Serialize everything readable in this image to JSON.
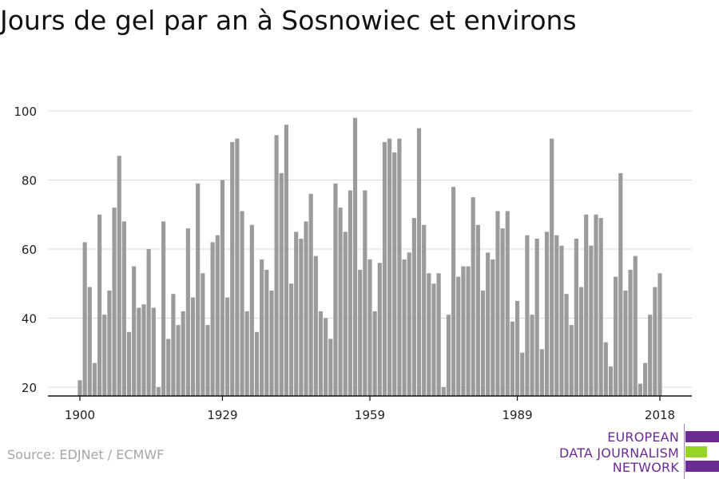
{
  "title": "Jours de gel par an à Sosnowiec et environs",
  "source": "Source: EDJNet / ECMWF",
  "logo": {
    "lines": [
      "EUROPEAN",
      "DATA JOURNALISM",
      "NETWORK"
    ],
    "text_color": "#6a2c91",
    "bar_colors": [
      "#6a2c91",
      "#97d321",
      "#6a2c91"
    ]
  },
  "colors": {
    "bar": "#9b9b9b",
    "grid": "#d9d9d9",
    "axis": "#111111",
    "tick_text": "#222222"
  },
  "chart_data": {
    "type": "bar",
    "title": "Jours de gel par an à Sosnowiec et environs",
    "xlabel": "",
    "ylabel": "",
    "ylim": [
      20,
      100
    ],
    "yticks": [
      20,
      40,
      60,
      80,
      100
    ],
    "xticks": [
      1900,
      1929,
      1959,
      1989,
      2018
    ],
    "grid": true,
    "x": [
      1900,
      1901,
      1902,
      1903,
      1904,
      1905,
      1906,
      1907,
      1908,
      1909,
      1910,
      1911,
      1912,
      1913,
      1914,
      1915,
      1916,
      1917,
      1918,
      1919,
      1920,
      1921,
      1922,
      1923,
      1924,
      1925,
      1926,
      1927,
      1928,
      1929,
      1930,
      1931,
      1932,
      1933,
      1934,
      1935,
      1936,
      1937,
      1938,
      1939,
      1940,
      1941,
      1942,
      1943,
      1944,
      1945,
      1946,
      1947,
      1948,
      1949,
      1950,
      1951,
      1952,
      1953,
      1954,
      1955,
      1956,
      1957,
      1958,
      1959,
      1960,
      1961,
      1962,
      1963,
      1964,
      1965,
      1966,
      1967,
      1968,
      1969,
      1970,
      1971,
      1972,
      1973,
      1974,
      1975,
      1976,
      1977,
      1978,
      1979,
      1980,
      1981,
      1982,
      1983,
      1984,
      1985,
      1986,
      1987,
      1988,
      1989,
      1990,
      1991,
      1992,
      1993,
      1994,
      1995,
      1996,
      1997,
      1998,
      1999,
      2000,
      2001,
      2002,
      2003,
      2004,
      2005,
      2006,
      2007,
      2008,
      2009,
      2010,
      2011,
      2012,
      2013,
      2014,
      2015,
      2016,
      2017,
      2018
    ],
    "values": [
      22,
      62,
      49,
      27,
      70,
      41,
      48,
      72,
      87,
      68,
      36,
      55,
      43,
      44,
      60,
      43,
      20,
      68,
      34,
      47,
      38,
      42,
      66,
      46,
      79,
      53,
      38,
      62,
      64,
      80,
      46,
      91,
      92,
      71,
      42,
      67,
      36,
      57,
      54,
      48,
      93,
      82,
      96,
      50,
      65,
      63,
      68,
      76,
      58,
      42,
      40,
      34,
      79,
      72,
      65,
      77,
      98,
      54,
      77,
      57,
      42,
      56,
      91,
      92,
      88,
      92,
      57,
      59,
      69,
      95,
      67,
      53,
      50,
      53,
      20,
      41,
      78,
      52,
      55,
      55,
      75,
      67,
      48,
      59,
      57,
      71,
      66,
      71,
      39,
      45,
      30,
      64,
      41,
      63,
      31,
      65,
      92,
      64,
      61,
      47,
      38,
      63,
      49,
      70,
      61,
      70,
      69,
      33,
      26,
      52,
      82,
      48,
      54,
      58,
      21,
      27,
      41,
      49,
      53
    ]
  }
}
